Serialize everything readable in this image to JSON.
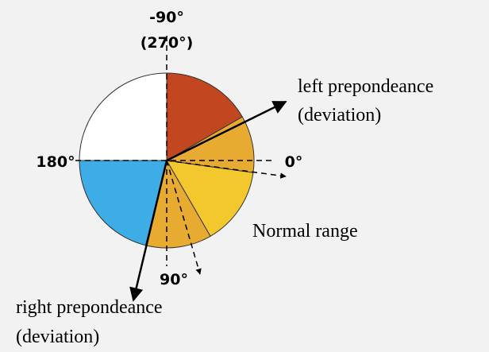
{
  "labels": {
    "top": "-90°",
    "top_alt": "(270°)",
    "left": "180°",
    "right": "0°",
    "bottom": "90°",
    "left_prep_1": "left prepondeance",
    "left_prep_2": "(deviation)",
    "normal": "Normal range",
    "right_prep_1": "right prepondeance",
    "right_prep_2": "(deviation)"
  }
}
